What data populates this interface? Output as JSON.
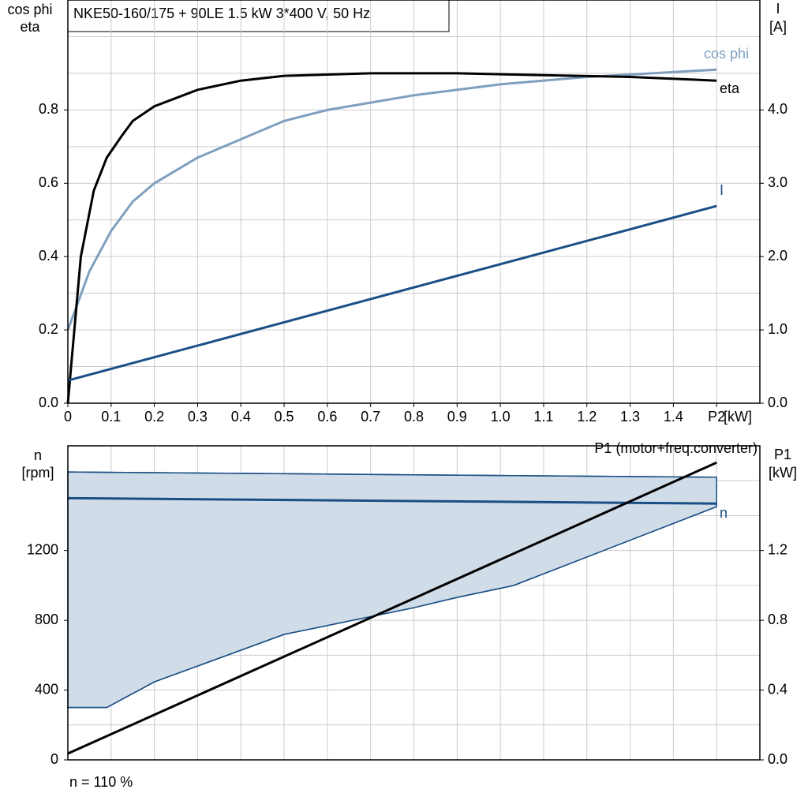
{
  "chart_data": [
    {
      "type": "line",
      "title": "NKE50-160/175 + 90LE   1.5 kW   3*400 V, 50 Hz",
      "ylabel": [
        "cos phi",
        "eta"
      ],
      "y2label": [
        "I",
        "[A]"
      ],
      "xlabel": "[kW]",
      "xlim": [
        0,
        1.6
      ],
      "xticks": [
        0,
        0.1,
        0.2,
        0.3,
        0.4,
        0.5,
        0.6,
        0.7,
        0.8,
        0.9,
        {
          "value": 1.0,
          "label": "1.0"
        },
        1.1,
        1.2,
        1.3,
        1.4,
        {
          "value": 1.5,
          "label": "P2"
        }
      ],
      "ylim": [
        0,
        1.1
      ],
      "yticks": [
        {
          "value": 0,
          "label": "0.0"
        },
        0.2,
        0.4,
        0.6,
        0.8
      ],
      "ygrid": [
        0.1,
        0.3,
        0.5,
        0.7,
        0.9,
        1.0
      ],
      "y2lim": [
        0,
        5.5
      ],
      "y2ticks": [
        {
          "value": 0,
          "label": "0.0"
        },
        {
          "value": 1,
          "label": "1.0"
        },
        {
          "value": 2,
          "label": "2.0"
        },
        {
          "value": 3,
          "label": "3.0"
        },
        {
          "value": 4,
          "label": "4.0"
        }
      ],
      "grid": true,
      "series": [
        {
          "name": "cos phi",
          "color": "#7f9fbf",
          "x": [
            0,
            0.05,
            0.1,
            0.15,
            0.2,
            0.3,
            0.4,
            0.5,
            0.6,
            0.8,
            1.0,
            1.2,
            1.5
          ],
          "values": [
            0.2,
            0.36,
            0.47,
            0.55,
            0.6,
            0.67,
            0.72,
            0.77,
            0.8,
            0.84,
            0.87,
            0.89,
            0.91
          ]
        },
        {
          "name": "eta",
          "color": "#000000",
          "x": [
            0,
            0.03,
            0.06,
            0.09,
            0.125,
            0.15,
            0.2,
            0.3,
            0.4,
            0.5,
            0.7,
            0.9,
            1.1,
            1.3,
            1.5
          ],
          "values": [
            0,
            0.4,
            0.58,
            0.67,
            0.73,
            0.77,
            0.81,
            0.855,
            0.88,
            0.893,
            0.9,
            0.9,
            0.895,
            0.89,
            0.88
          ]
        },
        {
          "name": "I",
          "color": "#1a4f85",
          "axis": "y2",
          "x": [
            0,
            1.5
          ],
          "values": [
            0.31,
            2.69
          ]
        }
      ]
    },
    {
      "type": "line",
      "ylabel": [
        "n",
        "[rpm]"
      ],
      "y2label": [
        "P1",
        "[kW]"
      ],
      "footer": "n = 110 %",
      "xlim": [
        0,
        1.6
      ],
      "xgrid": [
        0.1,
        0.2,
        0.3,
        0.4,
        0.5,
        0.6,
        0.7,
        0.8,
        0.9,
        1.0,
        1.1,
        1.2,
        1.3,
        1.4,
        1.5
      ],
      "ylim": [
        0,
        1800
      ],
      "yticks": [
        0,
        400,
        800,
        1200
      ],
      "ygrid": [
        200,
        600,
        1000,
        1400,
        1600
      ],
      "y2lim": [
        0,
        1.8
      ],
      "y2ticks": [
        {
          "value": 0,
          "label": "0.0"
        },
        0.4,
        0.8,
        1.2
      ],
      "grid": true,
      "band": {
        "color": "#d0dce8",
        "x_upper": [
          0,
          1.5
        ],
        "upper": [
          1650,
          1620
        ],
        "x_lower": [
          0,
          0.09,
          0.2,
          0.5,
          0.8,
          0.9,
          1.03,
          1.5
        ],
        "lower": [
          300,
          300,
          447,
          719,
          872,
          931,
          999,
          1451
        ]
      },
      "series": [
        {
          "name": "n",
          "color": "#1a4f85",
          "x": [
            0,
            1.5
          ],
          "values": [
            1500,
            1469
          ]
        },
        {
          "name": "P1 (motor+freq.converter)",
          "color": "#000000",
          "axis": "y2",
          "x": [
            0,
            1.5
          ],
          "values": [
            0.036,
            1.704
          ]
        }
      ]
    }
  ]
}
